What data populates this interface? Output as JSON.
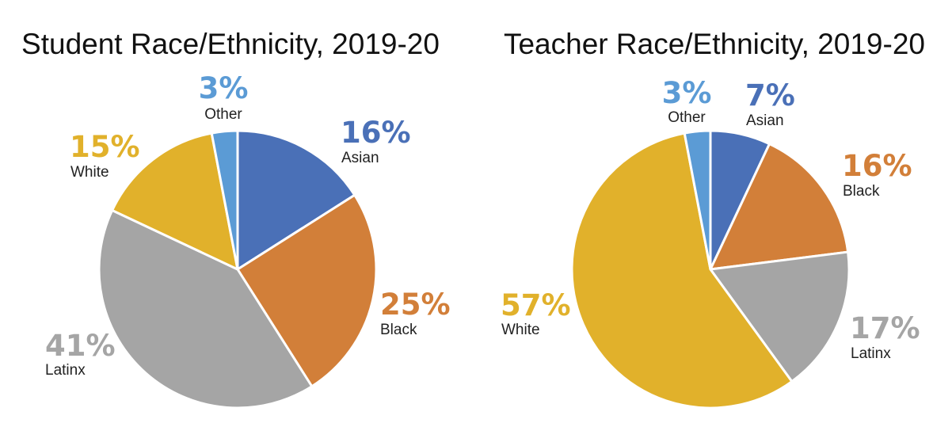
{
  "chart_data": [
    {
      "type": "pie",
      "title": "Student Race/Ethnicity, 2019-20",
      "slices": [
        {
          "label": "Asian",
          "value": 16,
          "display": "16%",
          "color": "#4a70b7"
        },
        {
          "label": "Black",
          "value": 25,
          "display": "25%",
          "color": "#d27f39"
        },
        {
          "label": "Latinx",
          "value": 41,
          "display": "41%",
          "color": "#a5a5a5"
        },
        {
          "label": "White",
          "value": 15,
          "display": "15%",
          "color": "#e1b12b"
        },
        {
          "label": "Other",
          "value": 3,
          "display": "3%",
          "color": "#5b9bd5"
        }
      ]
    },
    {
      "type": "pie",
      "title": "Teacher Race/Ethnicity, 2019-20",
      "slices": [
        {
          "label": "Asian",
          "value": 7,
          "display": "7%",
          "color": "#4a70b7"
        },
        {
          "label": "Black",
          "value": 16,
          "display": "16%",
          "color": "#d27f39"
        },
        {
          "label": "Latinx",
          "value": 17,
          "display": "17%",
          "color": "#a5a5a5"
        },
        {
          "label": "White",
          "value": 57,
          "display": "57%",
          "color": "#e1b12b"
        },
        {
          "label": "Other",
          "value": 3,
          "display": "3%",
          "color": "#5b9bd5"
        }
      ]
    }
  ]
}
